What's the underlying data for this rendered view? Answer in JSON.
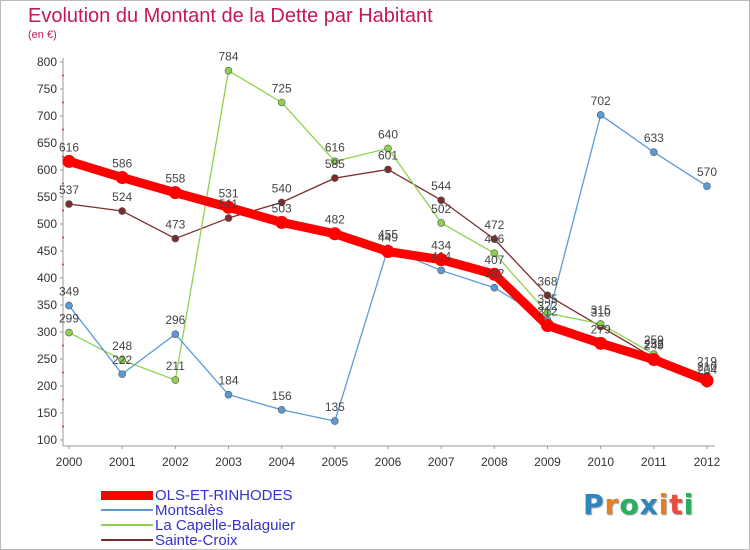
{
  "title": "Evolution du Montant de la Dette par Habitant",
  "subtitle": "(en €)",
  "brand": {
    "letters": [
      "P",
      "r",
      "o",
      "x",
      "i",
      "t",
      "i"
    ],
    "colors": [
      "#2e86c1",
      "#e67e22",
      "#27ae60",
      "#2e86c1",
      "#e67e22",
      "#e74c3c",
      "#27ae60"
    ]
  },
  "chart_data": {
    "type": "line",
    "x": [
      2000,
      2001,
      2002,
      2003,
      2004,
      2005,
      2006,
      2007,
      2008,
      2009,
      2010,
      2011,
      2012
    ],
    "ylim": [
      100,
      800
    ],
    "yticks": [
      100,
      150,
      200,
      250,
      300,
      350,
      400,
      450,
      500,
      550,
      600,
      650,
      700,
      750,
      800
    ],
    "grid": false,
    "legend_position": "bottom-left",
    "series": [
      {
        "name": "OLS-ET-RINHODES",
        "color": "#ff0000",
        "values": [
          616,
          586,
          558,
          531,
          503,
          482,
          449,
          434,
          407,
          312,
          279,
          249,
          210
        ],
        "labels": [
          "616",
          "586",
          "558",
          "531",
          "503",
          "482",
          "449",
          "434",
          "407",
          "312",
          "279",
          "249",
          "210"
        ]
      },
      {
        "name": "Montsalès",
        "color": "#5b9bd5",
        "values": [
          349,
          222,
          296,
          184,
          156,
          135,
          455,
          414,
          382,
          322,
          702,
          633,
          570
        ],
        "labels": [
          "349",
          "222",
          "296",
          "184",
          "156",
          "135",
          "455",
          "414",
          "382",
          "322",
          "702",
          "633",
          "570"
        ]
      },
      {
        "name": "La Capelle-Balaguier",
        "color": "#8fd14f",
        "values": [
          299,
          248,
          211,
          784,
          725,
          616,
          640,
          502,
          446,
          335,
          315,
          259,
          204
        ],
        "labels": [
          "299",
          "248",
          "211",
          "784",
          "725",
          "616",
          "640",
          "502",
          "446",
          "335",
          "315",
          "259",
          "204"
        ]
      },
      {
        "name": "Sainte-Croix",
        "color": "#7b2d2d",
        "values": [
          537,
          524,
          473,
          511,
          540,
          585,
          601,
          544,
          472,
          368,
          310,
          252,
          219
        ],
        "labels": [
          "537",
          "524",
          "473",
          "511",
          "540",
          "585",
          "601",
          "544",
          "472",
          "368",
          "310",
          "252",
          "219"
        ]
      }
    ]
  }
}
